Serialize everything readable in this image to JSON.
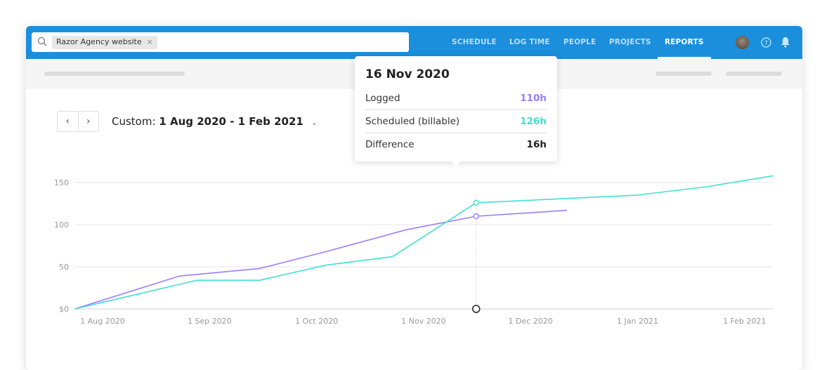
{
  "search": {
    "chip": "Razor Agency website",
    "remove": "×"
  },
  "nav": [
    {
      "label": "SCHEDULE"
    },
    {
      "label": "LOG TIME"
    },
    {
      "label": "PEOPLE"
    },
    {
      "label": "PROJECTS"
    },
    {
      "label": "REPORTS",
      "active": true
    }
  ],
  "range": {
    "prefix": "Custom:",
    "value": "1 Aug 2020 - 1 Feb 2021"
  },
  "tooltip": {
    "date": "16 Nov 2020",
    "rows": [
      {
        "label": "Logged",
        "value": "110h",
        "color": "#9b7dff"
      },
      {
        "label": "Scheduled (billable)",
        "value": "126h",
        "color": "#3fe0d0"
      },
      {
        "label": "Difference",
        "value": "16h",
        "color": "#222222"
      }
    ]
  },
  "chart_data": {
    "type": "line",
    "ylim": [
      0,
      150
    ],
    "yticks": [
      "$0",
      "50",
      "100",
      "150"
    ],
    "xticks": [
      "1 Aug 2020",
      "1 Sep 2020",
      "1 Oct 2020",
      "1 Nov 2020",
      "1 Dec 2020",
      "1 Jan 2021",
      "1 Feb 2021"
    ],
    "grid": true,
    "highlight": "2020-11-16",
    "series": [
      {
        "color": "#9b7dff",
        "points": [
          [
            "2020-07-24",
            0
          ],
          [
            "2020-08-23",
            39
          ],
          [
            "2020-09-15",
            48
          ],
          [
            "2020-10-04",
            68
          ],
          [
            "2020-10-27",
            94
          ],
          [
            "2020-11-16",
            110
          ],
          [
            "2020-12-12",
            117
          ]
        ]
      },
      {
        "color": "#3fe0d0",
        "points": [
          [
            "2020-07-24",
            0
          ],
          [
            "2020-08-28",
            34
          ],
          [
            "2020-09-15",
            34
          ],
          [
            "2020-10-04",
            52
          ],
          [
            "2020-10-23",
            62
          ],
          [
            "2020-11-16",
            126
          ],
          [
            "2021-01-01",
            135
          ],
          [
            "2021-01-21",
            145
          ],
          [
            "2021-02-09",
            158
          ]
        ]
      }
    ]
  }
}
